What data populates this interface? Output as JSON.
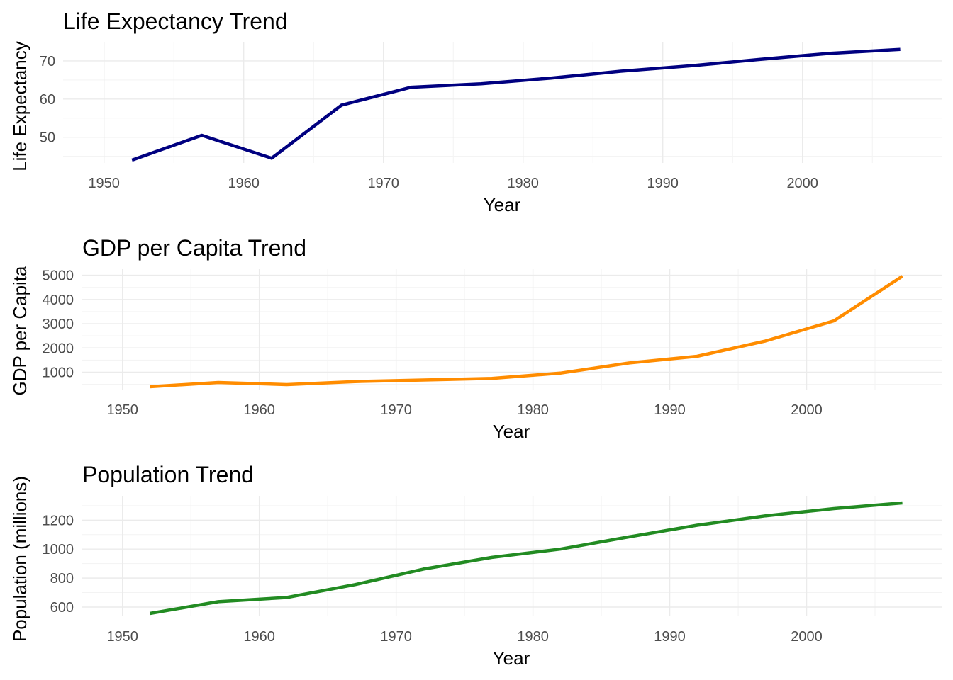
{
  "chart_data": [
    {
      "type": "line",
      "title": "Life Expectancy Trend",
      "xlabel": "Year",
      "ylabel": "Life Expectancy",
      "xlim": [
        1950,
        2007
      ],
      "ylim": [
        44,
        72.96
      ],
      "grid": true,
      "x_ticks": [
        1950,
        1960,
        1970,
        1980,
        1990,
        2000
      ],
      "y_ticks": [
        50,
        60,
        70
      ],
      "series": [
        {
          "color": "#000080",
          "x": [
            1952,
            1957,
            1962,
            1967,
            1972,
            1977,
            1982,
            1987,
            1992,
            1997,
            2002,
            2007
          ],
          "values": [
            44.0,
            50.5,
            44.5,
            58.4,
            63.1,
            64.0,
            65.5,
            67.3,
            68.7,
            70.4,
            72.0,
            73.0
          ]
        }
      ]
    },
    {
      "type": "line",
      "title": "GDP per Capita Trend",
      "xlabel": "Year",
      "ylabel": "GDP per Capita",
      "xlim": [
        1950,
        2007
      ],
      "ylim": [
        400,
        4959
      ],
      "grid": true,
      "x_ticks": [
        1950,
        1960,
        1970,
        1980,
        1990,
        2000
      ],
      "y_ticks": [
        1000,
        2000,
        3000,
        4000,
        5000
      ],
      "series": [
        {
          "color": "#ff8c00",
          "x": [
            1952,
            1957,
            1962,
            1967,
            1972,
            1977,
            1982,
            1987,
            1992,
            1997,
            2002,
            2007
          ],
          "values": [
            400,
            576,
            488,
            613,
            677,
            741,
            962,
            1379,
            1656,
            2289,
            3119,
            4959
          ]
        }
      ]
    },
    {
      "type": "line",
      "title": "Population Trend",
      "xlabel": "Year",
      "ylabel": "Population (millions)",
      "xlim": [
        1950,
        2007
      ],
      "ylim": [
        556,
        1319
      ],
      "grid": true,
      "x_ticks": [
        1950,
        1960,
        1970,
        1980,
        1990,
        2000
      ],
      "y_ticks": [
        600,
        800,
        1000,
        1200
      ],
      "series": [
        {
          "color": "#228b22",
          "x": [
            1952,
            1957,
            1962,
            1967,
            1972,
            1977,
            1982,
            1987,
            1992,
            1997,
            2002,
            2007
          ],
          "values": [
            556,
            637,
            666,
            755,
            862,
            943,
            1000,
            1084,
            1165,
            1230,
            1280,
            1319
          ]
        }
      ]
    }
  ]
}
